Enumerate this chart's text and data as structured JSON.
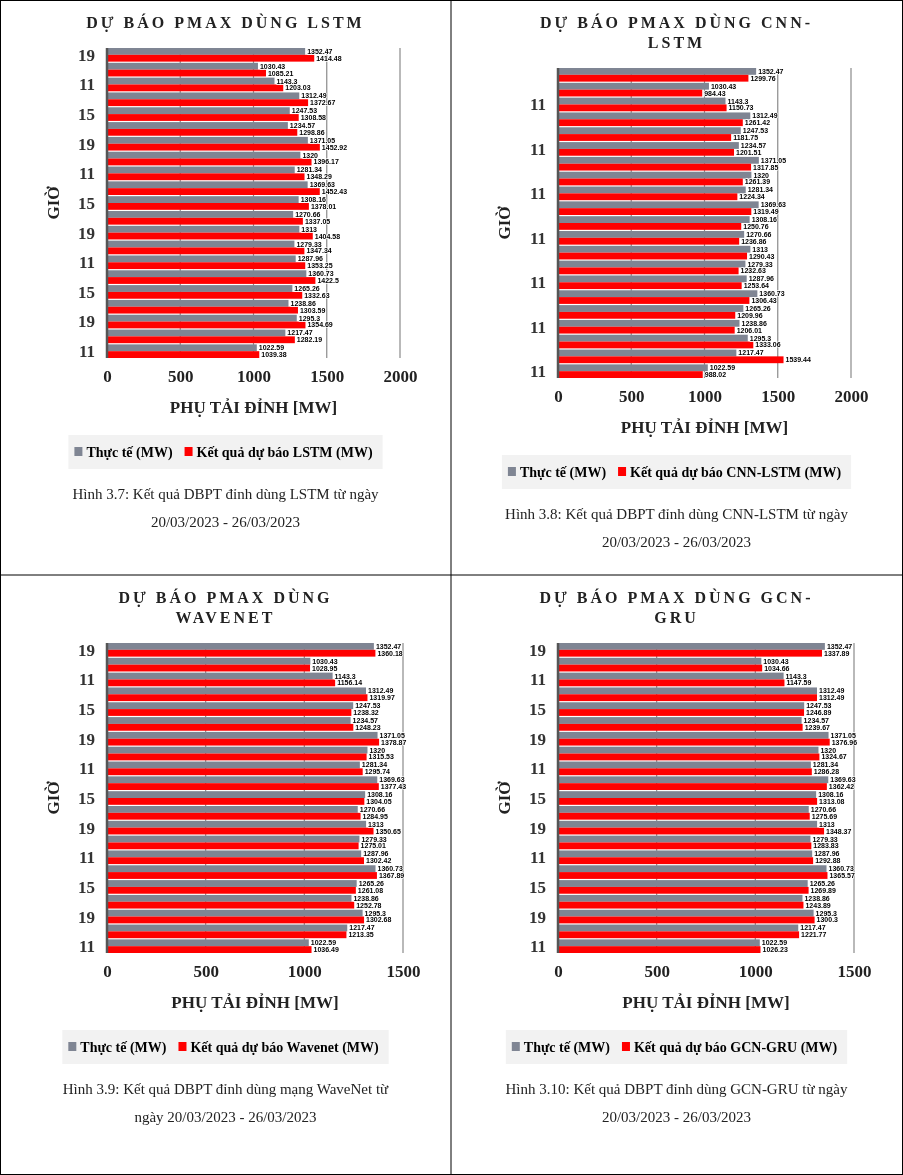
{
  "chart_data": [
    {
      "type": "bar",
      "orientation": "horizontal",
      "title": "DỰ BÁO PMAX DÙNG LSTM",
      "xlabel": "PHỤ TẢI ĐỈNH [MW]",
      "ylabel": "GIỜ",
      "categories": [
        "19",
        null,
        "11",
        null,
        "15",
        null,
        "19",
        null,
        "11",
        null,
        "15",
        null,
        "19",
        null,
        "11",
        null,
        "15",
        null,
        "19",
        null,
        "11"
      ],
      "series": [
        {
          "name": "Thực tế (MW)",
          "color": "#7f8593",
          "values": [
            1352.47,
            1030.43,
            1143.3,
            1312.49,
            1247.53,
            1234.57,
            1371.05,
            1320,
            1281.34,
            1369.63,
            1308.16,
            1270.66,
            1313,
            1279.33,
            1287.96,
            1360.73,
            1265.26,
            1238.86,
            1295.3,
            1217.47,
            1022.59
          ]
        },
        {
          "name": "Kết quả dự báo LSTM (MW)",
          "color": "#ff0000",
          "values": [
            1414.48,
            1085.21,
            1203.03,
            1372.67,
            1308.58,
            1298.86,
            1452.92,
            1396.17,
            1348.29,
            1452.43,
            1378.01,
            1337.05,
            1404.58,
            1347.34,
            1353.25,
            1422.5,
            1332.63,
            1303.59,
            1354.69,
            1282.19,
            1039.38
          ]
        }
      ],
      "xlim": [
        0,
        2000
      ],
      "xticks": [
        0,
        500,
        1000,
        1500,
        2000
      ],
      "grid": "x",
      "legend": "bottom",
      "data_labels": true,
      "annotations": [
        "Hình 3.7: Kết quả DBPT đỉnh dùng LSTM từ ngày 20/03/2023 - 26/03/2023"
      ]
    },
    {
      "type": "bar",
      "orientation": "horizontal",
      "title": "DỰ BÁO PMAX DÙNG CNN-LSTM",
      "xlabel": "PHỤ TẢI ĐỈNH [MW]",
      "ylabel": "GIỜ",
      "categories": [
        null,
        null,
        "11",
        null,
        null,
        "11",
        null,
        null,
        "11",
        null,
        null,
        "11",
        null,
        null,
        "11",
        null,
        null,
        "11",
        null,
        null,
        "11"
      ],
      "series": [
        {
          "name": "Thực tế (MW)",
          "color": "#7f8593",
          "values": [
            1352.47,
            1030.43,
            1143.3,
            1312.49,
            1247.53,
            1234.57,
            1371.05,
            1320,
            1281.34,
            1369.63,
            1308.16,
            1270.66,
            1313,
            1279.33,
            1287.96,
            1360.73,
            1265.26,
            1238.86,
            1295.3,
            1217.47,
            1022.59
          ]
        },
        {
          "name": "Kết quả dự báo CNN-LSTM (MW)",
          "color": "#ff0000",
          "values": [
            1299.76,
            984.43,
            1150.73,
            1261.42,
            1181.75,
            1201.51,
            1317.85,
            1261.39,
            1224.34,
            1319.49,
            1250.76,
            1236.86,
            1290.43,
            1232.63,
            1253.64,
            1306.43,
            1209.96,
            1206.01,
            1333.06,
            1539.44,
            988.02
          ]
        }
      ],
      "xlim": [
        0,
        2000
      ],
      "xticks": [
        0,
        500,
        1000,
        1500,
        2000
      ],
      "grid": "x",
      "legend": "bottom",
      "data_labels": true,
      "annotations": [
        "Hình 3.8: Kết quả DBPT đỉnh dùng CNN-LSTM từ ngày 20/03/2023 - 26/03/2023"
      ]
    },
    {
      "type": "bar",
      "orientation": "horizontal",
      "title": "DỰ BÁO PMAX DÙNG WAVENET",
      "xlabel": "PHỤ TẢI ĐỈNH [MW]",
      "ylabel": "GIỜ",
      "categories": [
        "19",
        null,
        "11",
        null,
        "15",
        null,
        "19",
        null,
        "11",
        null,
        "15",
        null,
        "19",
        null,
        "11",
        null,
        "15",
        null,
        "19",
        null,
        "11"
      ],
      "series": [
        {
          "name": "Thực tế (MW)",
          "color": "#7f8593",
          "values": [
            1352.47,
            1030.43,
            1143.3,
            1312.49,
            1247.53,
            1234.57,
            1371.05,
            1320,
            1281.34,
            1369.63,
            1308.16,
            1270.66,
            1313,
            1279.33,
            1287.96,
            1360.73,
            1265.26,
            1238.86,
            1295.3,
            1217.47,
            1022.59
          ]
        },
        {
          "name": "Kết quả dự báo Wavenet (MW)",
          "color": "#ff0000",
          "values": [
            1360.18,
            1028.95,
            1156.14,
            1319.97,
            1238.32,
            1248.23,
            1378.87,
            1315.53,
            1295.74,
            1377.43,
            1304.05,
            1284.95,
            1350.65,
            1275.01,
            1302.42,
            1367.89,
            1261.08,
            1252.78,
            1302.68,
            1213.35,
            1036.49
          ]
        }
      ],
      "xlim": [
        0,
        1500
      ],
      "xticks": [
        0,
        500,
        1000,
        1500
      ],
      "grid": "x",
      "legend": "bottom",
      "data_labels": true,
      "annotations": [
        "Hình 3.9: Kết quả DBPT đỉnh dùng mạng WaveNet từ ngày 20/03/2023 - 26/03/2023"
      ]
    },
    {
      "type": "bar",
      "orientation": "horizontal",
      "title": "DỰ BÁO PMAX DÙNG GCN-GRU",
      "xlabel": "PHỤ TẢI ĐỈNH [MW]",
      "ylabel": "GIỜ",
      "categories": [
        "19",
        null,
        "11",
        null,
        "15",
        null,
        "19",
        null,
        "11",
        null,
        "15",
        null,
        "19",
        null,
        "11",
        null,
        "15",
        null,
        "19",
        null,
        "11"
      ],
      "series": [
        {
          "name": "Thực tế (MW)",
          "color": "#7f8593",
          "values": [
            1352.47,
            1030.43,
            1143.3,
            1312.49,
            1247.53,
            1234.57,
            1371.05,
            1320,
            1281.34,
            1369.63,
            1308.16,
            1270.66,
            1313,
            1279.33,
            1287.96,
            1360.73,
            1265.26,
            1238.86,
            1295.3,
            1217.47,
            1022.59
          ]
        },
        {
          "name": "Kết quả dự báo GCN-GRU (MW)",
          "color": "#ff0000",
          "values": [
            1337.89,
            1034.66,
            1147.59,
            1312.49,
            1246.89,
            1239.67,
            1376.96,
            1324.67,
            1286.28,
            1362.42,
            1313.08,
            1275.69,
            1348.37,
            1283.83,
            1292.88,
            1365.57,
            1269.89,
            1243.89,
            1300.3,
            1221.77,
            1026.23
          ]
        }
      ],
      "xlim": [
        0,
        1500
      ],
      "xticks": [
        0,
        500,
        1000,
        1500
      ],
      "grid": "x",
      "legend": "bottom",
      "data_labels": true,
      "annotations": [
        "Hình 3.10: Kết quả DBPT đỉnh dùng GCN-GRU từ ngày 20/03/2023 - 26/03/2023"
      ]
    }
  ]
}
